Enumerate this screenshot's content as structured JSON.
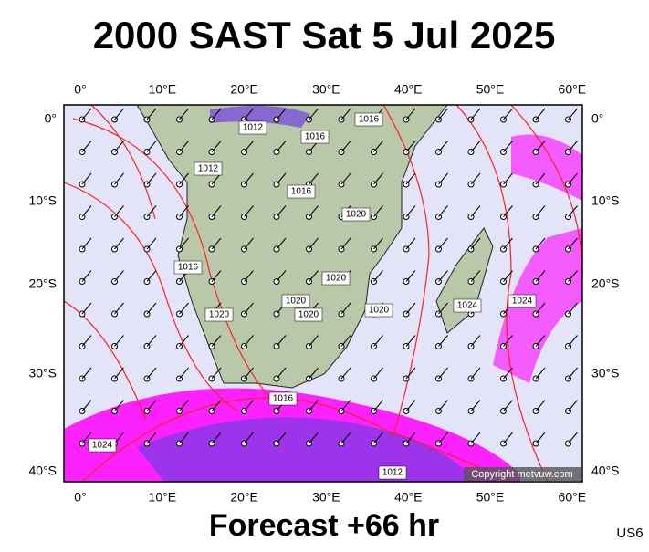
{
  "title": "2000 SAST Sat 5 Jul 2025",
  "lon_labels": [
    "0°",
    "10°E",
    "20°E",
    "30°E",
    "40°E",
    "50°E",
    "60°E"
  ],
  "lat_labels": [
    "0°",
    "10°S",
    "20°S",
    "30°S",
    "40°S"
  ],
  "isobar_labels": [
    "1012",
    "1016",
    "1012",
    "1016",
    "1016",
    "1020",
    "1020",
    "1020",
    "1020",
    "1020",
    "1020",
    "1024",
    "1024",
    "1016",
    "1016",
    "1024",
    "1012"
  ],
  "copyright": "Copyright metvuw.com",
  "footer": "Forecast +66 hr",
  "code": "US6"
}
